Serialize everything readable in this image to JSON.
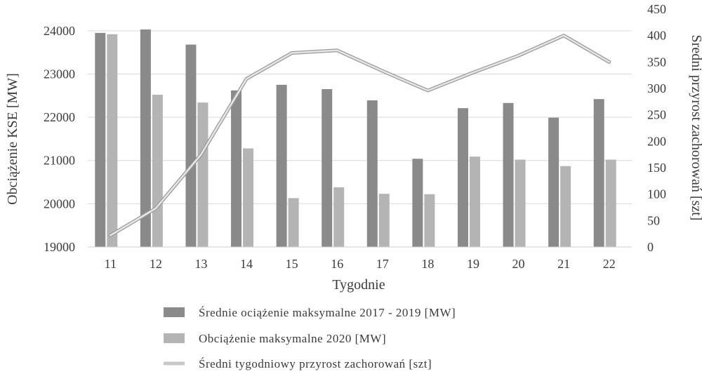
{
  "chart_data": {
    "type": "bar",
    "title": "",
    "categories": [
      "11",
      "12",
      "13",
      "14",
      "15",
      "16",
      "17",
      "18",
      "19",
      "20",
      "21",
      "22"
    ],
    "xlabel": "Tygodnie",
    "ylabel": "Obciążenie KSE [MW]",
    "y2label": "Średni przyrost zachorowań [szt]",
    "ylim": [
      19000,
      24500
    ],
    "y2lim": [
      0,
      450
    ],
    "yticks": [
      19000,
      20000,
      21000,
      22000,
      23000,
      24000
    ],
    "y2ticks": [
      0,
      50,
      100,
      150,
      200,
      250,
      300,
      350,
      400,
      450
    ],
    "grid": true,
    "legend_position": "bottom",
    "series": [
      {
        "name": "Średnie ociążenie maksymalne 2017 - 2019 [MW]",
        "kind": "bar",
        "axis": "left",
        "color": "#8a8a8a",
        "values": [
          23950,
          24030,
          23680,
          22620,
          22750,
          22650,
          22390,
          21040,
          22210,
          22330,
          21990,
          22420
        ]
      },
      {
        "name": "Obciążenie maksymalne 2020 [MW]",
        "kind": "bar",
        "axis": "left",
        "color": "#b4b4b4",
        "values": [
          23920,
          22520,
          22340,
          21280,
          20130,
          20380,
          20230,
          20220,
          21090,
          21020,
          20870,
          21020
        ]
      },
      {
        "name": "Średni tygodniowy przyrost zachorowań [szt]",
        "kind": "line",
        "axis": "right",
        "color": "#c8c8c8",
        "values": [
          22,
          73,
          175,
          318,
          367,
          372,
          333,
          296,
          330,
          362,
          400,
          350
        ]
      }
    ]
  }
}
